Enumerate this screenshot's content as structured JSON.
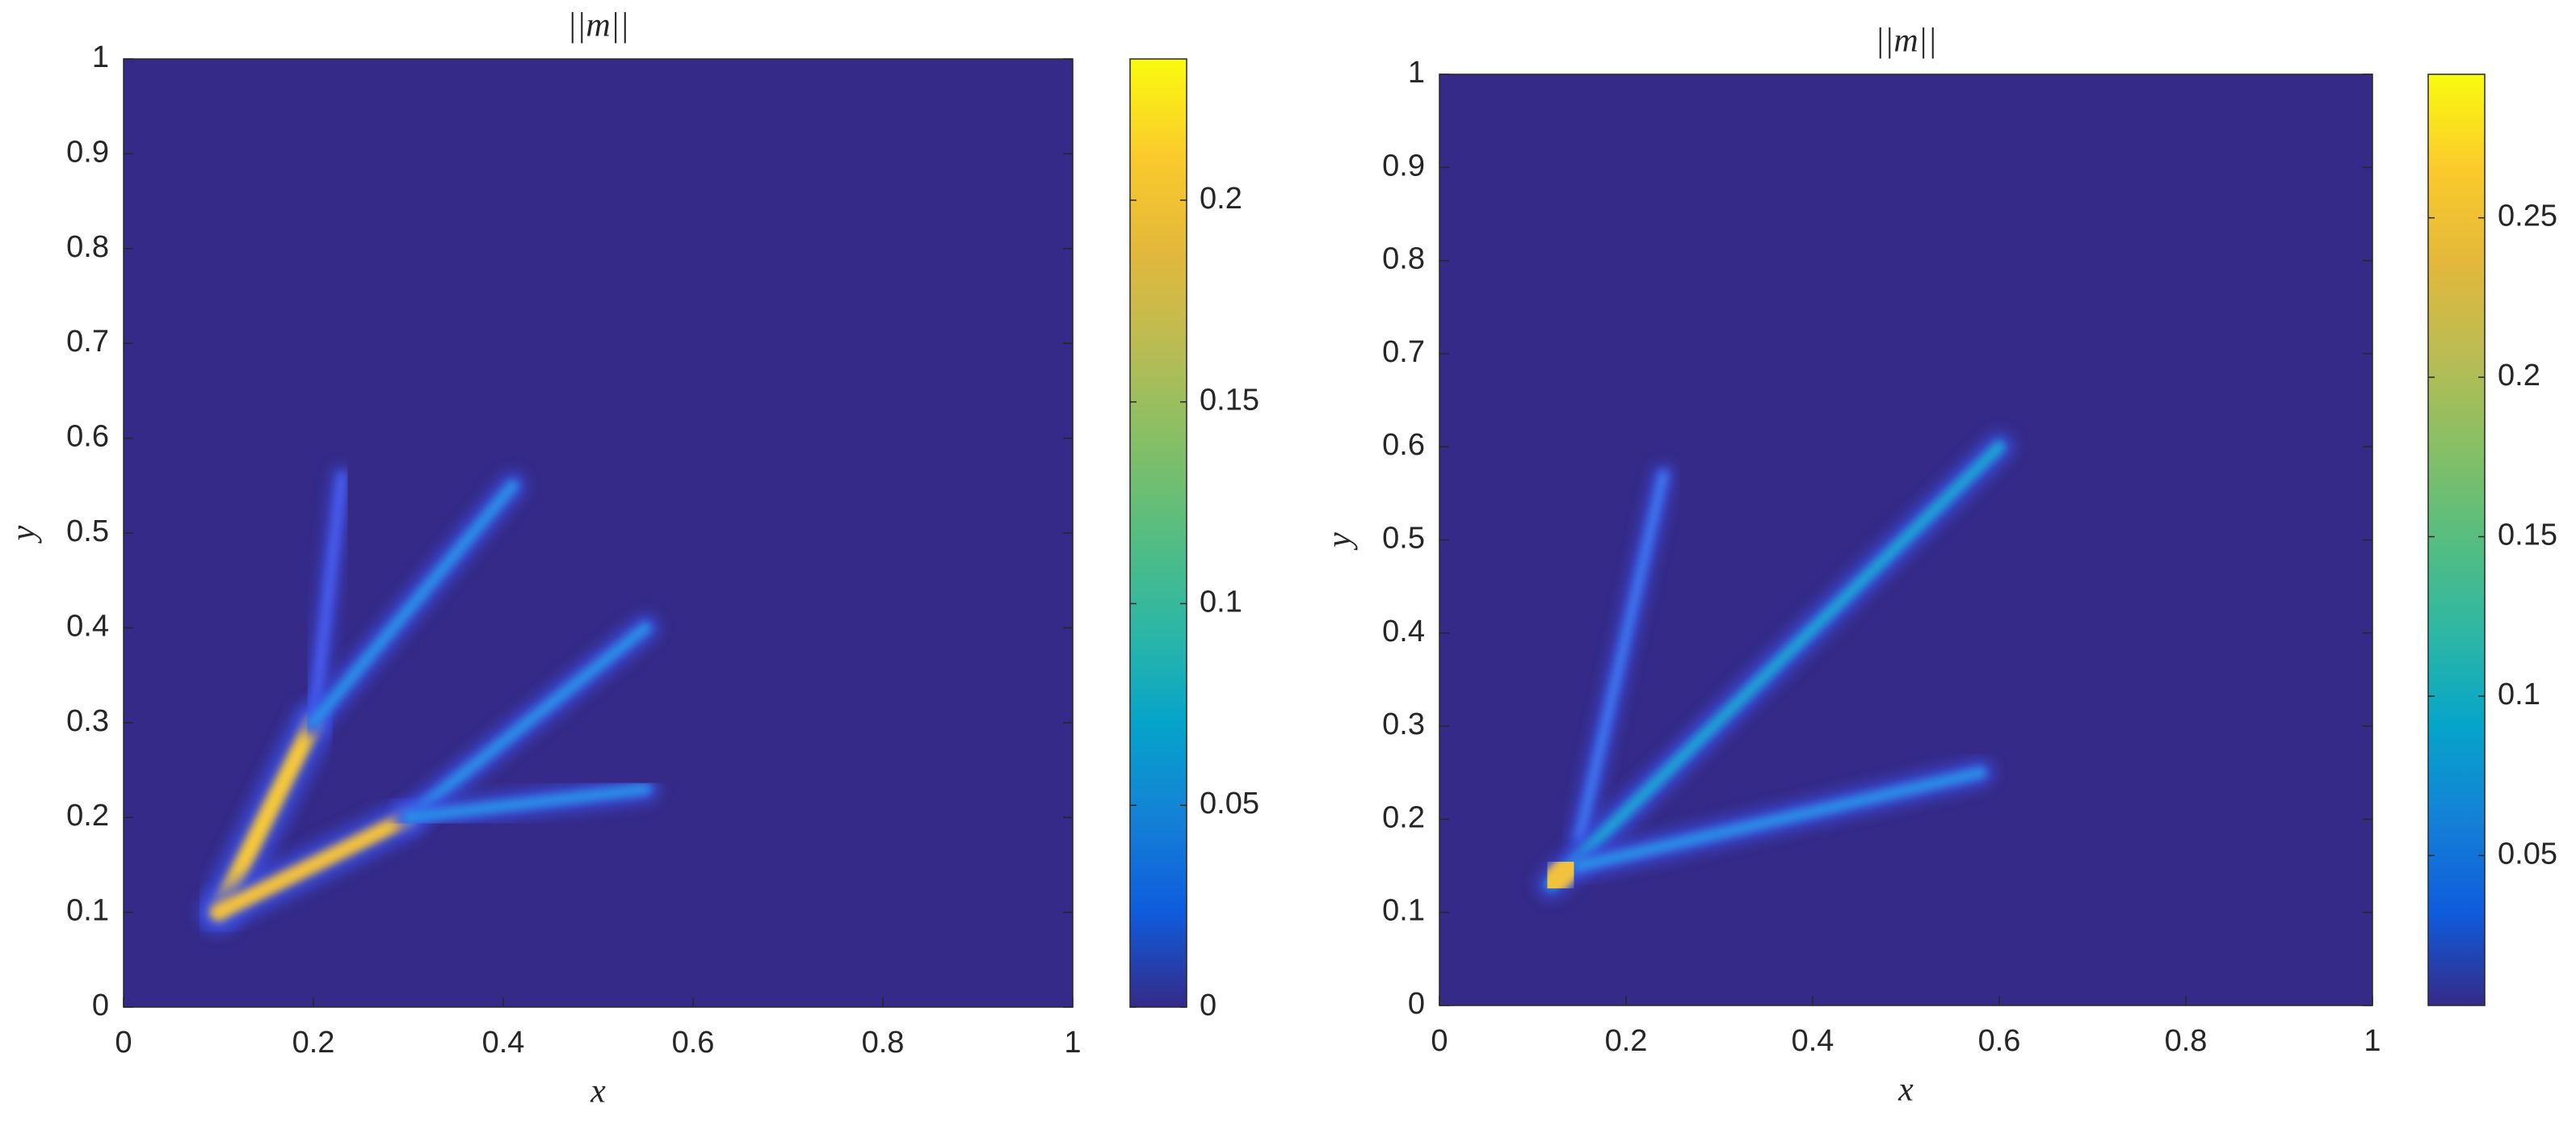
{
  "chart_data": [
    {
      "type": "heatmap",
      "title": "||m||",
      "xlabel": "x",
      "ylabel": "y",
      "xlim": [
        0,
        1
      ],
      "ylim": [
        0,
        1
      ],
      "xticks": [
        0,
        0.2,
        0.4,
        0.6,
        0.8,
        1
      ],
      "yticks": [
        0,
        0.1,
        0.2,
        0.3,
        0.4,
        0.5,
        0.6,
        0.7,
        0.8,
        0.9,
        1
      ],
      "colormap": "parula",
      "clim": [
        0,
        0.235
      ],
      "cticks": [
        0,
        0.05,
        0.1,
        0.15,
        0.2
      ]
    },
    {
      "type": "heatmap",
      "title": "||m||",
      "xlabel": "x",
      "ylabel": "y",
      "xlim": [
        0,
        1
      ],
      "ylim": [
        0,
        1
      ],
      "xticks": [
        0,
        0.2,
        0.4,
        0.6,
        0.8,
        1
      ],
      "yticks": [
        0,
        0.1,
        0.2,
        0.3,
        0.4,
        0.5,
        0.6,
        0.7,
        0.8,
        0.9,
        1
      ],
      "colormap": "parula",
      "clim": [
        0.003,
        0.295
      ],
      "cticks": [
        0.05,
        0.1,
        0.15,
        0.2,
        0.25
      ]
    }
  ]
}
